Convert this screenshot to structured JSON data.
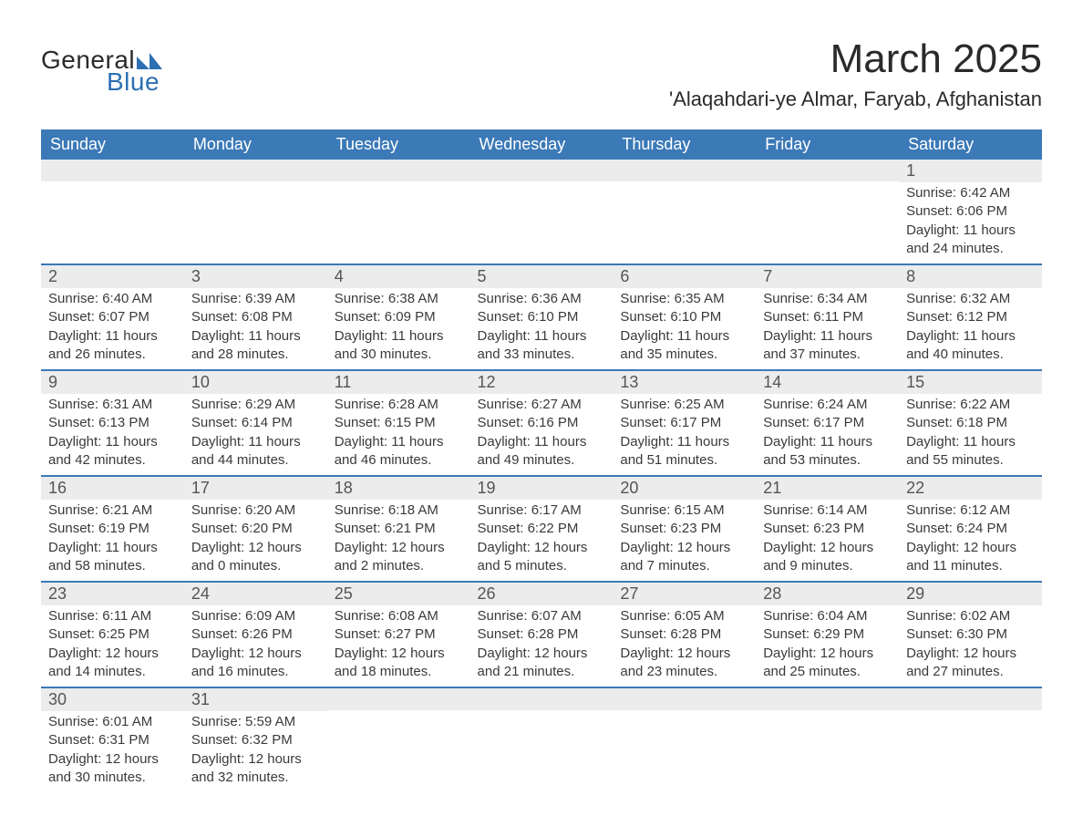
{
  "brand": {
    "word1": "General",
    "word2": "Blue",
    "triangle_color": "#2d6fb3"
  },
  "title": "March 2025",
  "location": "'Alaqahdari-ye Almar, Faryab, Afghanistan",
  "colors": {
    "header_bg": "#3b79b7",
    "header_text": "#ffffff",
    "daynum_bg": "#ececec",
    "row_divider": "#3b79b7",
    "body_text": "#3a3a3a",
    "page_bg": "#ffffff"
  },
  "typography": {
    "title_fontsize": 44,
    "location_fontsize": 22,
    "weekday_fontsize": 18,
    "daynum_fontsize": 18,
    "body_fontsize": 15
  },
  "layout": {
    "columns": 7,
    "rows": 6,
    "start_weekday": "Sunday"
  },
  "weekdays": [
    "Sunday",
    "Monday",
    "Tuesday",
    "Wednesday",
    "Thursday",
    "Friday",
    "Saturday"
  ],
  "weeks": [
    [
      {
        "n": "",
        "sunrise": "",
        "sunset": "",
        "daylight1": "",
        "daylight2": ""
      },
      {
        "n": "",
        "sunrise": "",
        "sunset": "",
        "daylight1": "",
        "daylight2": ""
      },
      {
        "n": "",
        "sunrise": "",
        "sunset": "",
        "daylight1": "",
        "daylight2": ""
      },
      {
        "n": "",
        "sunrise": "",
        "sunset": "",
        "daylight1": "",
        "daylight2": ""
      },
      {
        "n": "",
        "sunrise": "",
        "sunset": "",
        "daylight1": "",
        "daylight2": ""
      },
      {
        "n": "",
        "sunrise": "",
        "sunset": "",
        "daylight1": "",
        "daylight2": ""
      },
      {
        "n": "1",
        "sunrise": "Sunrise: 6:42 AM",
        "sunset": "Sunset: 6:06 PM",
        "daylight1": "Daylight: 11 hours",
        "daylight2": "and 24 minutes."
      }
    ],
    [
      {
        "n": "2",
        "sunrise": "Sunrise: 6:40 AM",
        "sunset": "Sunset: 6:07 PM",
        "daylight1": "Daylight: 11 hours",
        "daylight2": "and 26 minutes."
      },
      {
        "n": "3",
        "sunrise": "Sunrise: 6:39 AM",
        "sunset": "Sunset: 6:08 PM",
        "daylight1": "Daylight: 11 hours",
        "daylight2": "and 28 minutes."
      },
      {
        "n": "4",
        "sunrise": "Sunrise: 6:38 AM",
        "sunset": "Sunset: 6:09 PM",
        "daylight1": "Daylight: 11 hours",
        "daylight2": "and 30 minutes."
      },
      {
        "n": "5",
        "sunrise": "Sunrise: 6:36 AM",
        "sunset": "Sunset: 6:10 PM",
        "daylight1": "Daylight: 11 hours",
        "daylight2": "and 33 minutes."
      },
      {
        "n": "6",
        "sunrise": "Sunrise: 6:35 AM",
        "sunset": "Sunset: 6:10 PM",
        "daylight1": "Daylight: 11 hours",
        "daylight2": "and 35 minutes."
      },
      {
        "n": "7",
        "sunrise": "Sunrise: 6:34 AM",
        "sunset": "Sunset: 6:11 PM",
        "daylight1": "Daylight: 11 hours",
        "daylight2": "and 37 minutes."
      },
      {
        "n": "8",
        "sunrise": "Sunrise: 6:32 AM",
        "sunset": "Sunset: 6:12 PM",
        "daylight1": "Daylight: 11 hours",
        "daylight2": "and 40 minutes."
      }
    ],
    [
      {
        "n": "9",
        "sunrise": "Sunrise: 6:31 AM",
        "sunset": "Sunset: 6:13 PM",
        "daylight1": "Daylight: 11 hours",
        "daylight2": "and 42 minutes."
      },
      {
        "n": "10",
        "sunrise": "Sunrise: 6:29 AM",
        "sunset": "Sunset: 6:14 PM",
        "daylight1": "Daylight: 11 hours",
        "daylight2": "and 44 minutes."
      },
      {
        "n": "11",
        "sunrise": "Sunrise: 6:28 AM",
        "sunset": "Sunset: 6:15 PM",
        "daylight1": "Daylight: 11 hours",
        "daylight2": "and 46 minutes."
      },
      {
        "n": "12",
        "sunrise": "Sunrise: 6:27 AM",
        "sunset": "Sunset: 6:16 PM",
        "daylight1": "Daylight: 11 hours",
        "daylight2": "and 49 minutes."
      },
      {
        "n": "13",
        "sunrise": "Sunrise: 6:25 AM",
        "sunset": "Sunset: 6:17 PM",
        "daylight1": "Daylight: 11 hours",
        "daylight2": "and 51 minutes."
      },
      {
        "n": "14",
        "sunrise": "Sunrise: 6:24 AM",
        "sunset": "Sunset: 6:17 PM",
        "daylight1": "Daylight: 11 hours",
        "daylight2": "and 53 minutes."
      },
      {
        "n": "15",
        "sunrise": "Sunrise: 6:22 AM",
        "sunset": "Sunset: 6:18 PM",
        "daylight1": "Daylight: 11 hours",
        "daylight2": "and 55 minutes."
      }
    ],
    [
      {
        "n": "16",
        "sunrise": "Sunrise: 6:21 AM",
        "sunset": "Sunset: 6:19 PM",
        "daylight1": "Daylight: 11 hours",
        "daylight2": "and 58 minutes."
      },
      {
        "n": "17",
        "sunrise": "Sunrise: 6:20 AM",
        "sunset": "Sunset: 6:20 PM",
        "daylight1": "Daylight: 12 hours",
        "daylight2": "and 0 minutes."
      },
      {
        "n": "18",
        "sunrise": "Sunrise: 6:18 AM",
        "sunset": "Sunset: 6:21 PM",
        "daylight1": "Daylight: 12 hours",
        "daylight2": "and 2 minutes."
      },
      {
        "n": "19",
        "sunrise": "Sunrise: 6:17 AM",
        "sunset": "Sunset: 6:22 PM",
        "daylight1": "Daylight: 12 hours",
        "daylight2": "and 5 minutes."
      },
      {
        "n": "20",
        "sunrise": "Sunrise: 6:15 AM",
        "sunset": "Sunset: 6:23 PM",
        "daylight1": "Daylight: 12 hours",
        "daylight2": "and 7 minutes."
      },
      {
        "n": "21",
        "sunrise": "Sunrise: 6:14 AM",
        "sunset": "Sunset: 6:23 PM",
        "daylight1": "Daylight: 12 hours",
        "daylight2": "and 9 minutes."
      },
      {
        "n": "22",
        "sunrise": "Sunrise: 6:12 AM",
        "sunset": "Sunset: 6:24 PM",
        "daylight1": "Daylight: 12 hours",
        "daylight2": "and 11 minutes."
      }
    ],
    [
      {
        "n": "23",
        "sunrise": "Sunrise: 6:11 AM",
        "sunset": "Sunset: 6:25 PM",
        "daylight1": "Daylight: 12 hours",
        "daylight2": "and 14 minutes."
      },
      {
        "n": "24",
        "sunrise": "Sunrise: 6:09 AM",
        "sunset": "Sunset: 6:26 PM",
        "daylight1": "Daylight: 12 hours",
        "daylight2": "and 16 minutes."
      },
      {
        "n": "25",
        "sunrise": "Sunrise: 6:08 AM",
        "sunset": "Sunset: 6:27 PM",
        "daylight1": "Daylight: 12 hours",
        "daylight2": "and 18 minutes."
      },
      {
        "n": "26",
        "sunrise": "Sunrise: 6:07 AM",
        "sunset": "Sunset: 6:28 PM",
        "daylight1": "Daylight: 12 hours",
        "daylight2": "and 21 minutes."
      },
      {
        "n": "27",
        "sunrise": "Sunrise: 6:05 AM",
        "sunset": "Sunset: 6:28 PM",
        "daylight1": "Daylight: 12 hours",
        "daylight2": "and 23 minutes."
      },
      {
        "n": "28",
        "sunrise": "Sunrise: 6:04 AM",
        "sunset": "Sunset: 6:29 PM",
        "daylight1": "Daylight: 12 hours",
        "daylight2": "and 25 minutes."
      },
      {
        "n": "29",
        "sunrise": "Sunrise: 6:02 AM",
        "sunset": "Sunset: 6:30 PM",
        "daylight1": "Daylight: 12 hours",
        "daylight2": "and 27 minutes."
      }
    ],
    [
      {
        "n": "30",
        "sunrise": "Sunrise: 6:01 AM",
        "sunset": "Sunset: 6:31 PM",
        "daylight1": "Daylight: 12 hours",
        "daylight2": "and 30 minutes."
      },
      {
        "n": "31",
        "sunrise": "Sunrise: 5:59 AM",
        "sunset": "Sunset: 6:32 PM",
        "daylight1": "Daylight: 12 hours",
        "daylight2": "and 32 minutes."
      },
      {
        "n": "",
        "sunrise": "",
        "sunset": "",
        "daylight1": "",
        "daylight2": ""
      },
      {
        "n": "",
        "sunrise": "",
        "sunset": "",
        "daylight1": "",
        "daylight2": ""
      },
      {
        "n": "",
        "sunrise": "",
        "sunset": "",
        "daylight1": "",
        "daylight2": ""
      },
      {
        "n": "",
        "sunrise": "",
        "sunset": "",
        "daylight1": "",
        "daylight2": ""
      },
      {
        "n": "",
        "sunrise": "",
        "sunset": "",
        "daylight1": "",
        "daylight2": ""
      }
    ]
  ]
}
